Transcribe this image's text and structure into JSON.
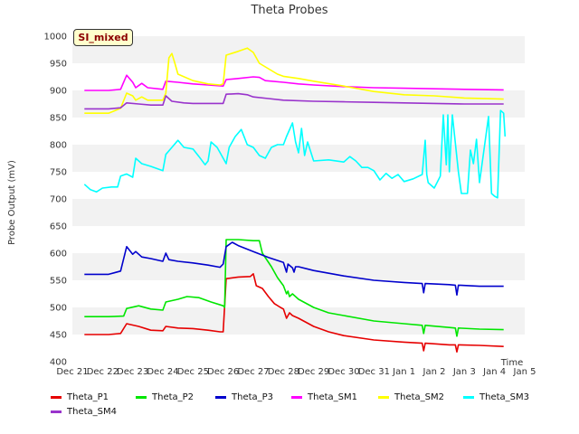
{
  "chart_data": {
    "type": "line",
    "title": "Theta Probes",
    "xlabel": "Time",
    "ylabel": "Probe Output (mV)",
    "badge": "SI_mixed",
    "ylim": [
      400,
      1000
    ],
    "xlim": [
      0,
      15
    ],
    "y_ticks": [
      400,
      450,
      500,
      550,
      600,
      650,
      700,
      750,
      800,
      850,
      900,
      950,
      1000
    ],
    "x_ticks": [
      {
        "x": 0,
        "label": "Dec 21"
      },
      {
        "x": 1,
        "label": "Dec 22"
      },
      {
        "x": 2,
        "label": "Dec 23"
      },
      {
        "x": 3,
        "label": "Dec 24"
      },
      {
        "x": 4,
        "label": "Dec 25"
      },
      {
        "x": 5,
        "label": "Dec 26"
      },
      {
        "x": 6,
        "label": "Dec 27"
      },
      {
        "x": 7,
        "label": "Dec 28"
      },
      {
        "x": 8,
        "label": "Dec 29"
      },
      {
        "x": 9,
        "label": "Dec 30"
      },
      {
        "x": 10,
        "label": "Dec 31"
      },
      {
        "x": 11,
        "label": "Jan 1"
      },
      {
        "x": 12,
        "label": "Jan 2"
      },
      {
        "x": 13,
        "label": "Jan 3"
      },
      {
        "x": 14,
        "label": "Jan 4"
      },
      {
        "x": 15,
        "label": "Jan 5"
      }
    ],
    "grid": true,
    "legend_position": "bottom",
    "series": [
      {
        "name": "Theta_P1",
        "color": "#e60000",
        "points": [
          [
            0.4,
            450
          ],
          [
            1.2,
            450
          ],
          [
            1.6,
            452
          ],
          [
            1.8,
            470
          ],
          [
            2.2,
            465
          ],
          [
            2.6,
            458
          ],
          [
            3.0,
            457
          ],
          [
            3.1,
            465
          ],
          [
            3.5,
            462
          ],
          [
            4.0,
            461
          ],
          [
            4.5,
            458
          ],
          [
            4.9,
            455
          ],
          [
            5.0,
            455
          ],
          [
            5.1,
            553
          ],
          [
            5.5,
            556
          ],
          [
            5.9,
            557
          ],
          [
            6.0,
            562
          ],
          [
            6.1,
            540
          ],
          [
            6.3,
            535
          ],
          [
            6.5,
            520
          ],
          [
            6.7,
            507
          ],
          [
            6.9,
            500
          ],
          [
            7.0,
            497
          ],
          [
            7.1,
            480
          ],
          [
            7.2,
            490
          ],
          [
            7.3,
            485
          ],
          [
            7.5,
            480
          ],
          [
            8.0,
            465
          ],
          [
            8.5,
            455
          ],
          [
            9.0,
            448
          ],
          [
            10.0,
            440
          ],
          [
            11.0,
            436
          ],
          [
            11.6,
            434
          ],
          [
            11.65,
            420
          ],
          [
            11.7,
            434
          ],
          [
            12.5,
            431
          ],
          [
            12.7,
            431
          ],
          [
            12.75,
            418
          ],
          [
            12.8,
            431
          ],
          [
            13.5,
            430
          ],
          [
            14.3,
            428
          ]
        ]
      },
      {
        "name": "Theta_P2",
        "color": "#00e600",
        "points": [
          [
            0.4,
            483
          ],
          [
            1.2,
            483
          ],
          [
            1.7,
            484
          ],
          [
            1.8,
            498
          ],
          [
            2.2,
            503
          ],
          [
            2.6,
            497
          ],
          [
            3.0,
            495
          ],
          [
            3.1,
            510
          ],
          [
            3.5,
            515
          ],
          [
            3.8,
            520
          ],
          [
            4.2,
            518
          ],
          [
            4.6,
            510
          ],
          [
            5.0,
            503
          ],
          [
            5.05,
            500
          ],
          [
            5.1,
            625
          ],
          [
            5.5,
            625
          ],
          [
            6.0,
            623
          ],
          [
            6.2,
            623
          ],
          [
            6.3,
            600
          ],
          [
            6.6,
            575
          ],
          [
            6.8,
            555
          ],
          [
            7.0,
            540
          ],
          [
            7.1,
            525
          ],
          [
            7.15,
            530
          ],
          [
            7.2,
            520
          ],
          [
            7.3,
            525
          ],
          [
            7.5,
            515
          ],
          [
            8.0,
            500
          ],
          [
            8.5,
            490
          ],
          [
            9.0,
            485
          ],
          [
            10.0,
            475
          ],
          [
            11.0,
            470
          ],
          [
            11.6,
            467
          ],
          [
            11.65,
            452
          ],
          [
            11.7,
            467
          ],
          [
            12.5,
            463
          ],
          [
            12.7,
            462
          ],
          [
            12.75,
            447
          ],
          [
            12.8,
            462
          ],
          [
            13.5,
            460
          ],
          [
            14.3,
            459
          ]
        ]
      },
      {
        "name": "Theta_P3",
        "color": "#0000cc",
        "points": [
          [
            0.4,
            561
          ],
          [
            1.2,
            561
          ],
          [
            1.6,
            567
          ],
          [
            1.8,
            612
          ],
          [
            2.0,
            598
          ],
          [
            2.1,
            603
          ],
          [
            2.3,
            593
          ],
          [
            2.6,
            590
          ],
          [
            3.0,
            585
          ],
          [
            3.1,
            600
          ],
          [
            3.2,
            588
          ],
          [
            3.5,
            585
          ],
          [
            4.0,
            582
          ],
          [
            4.5,
            578
          ],
          [
            4.9,
            574
          ],
          [
            5.0,
            580
          ],
          [
            5.1,
            612
          ],
          [
            5.3,
            620
          ],
          [
            5.5,
            614
          ],
          [
            6.0,
            603
          ],
          [
            6.5,
            592
          ],
          [
            7.0,
            583
          ],
          [
            7.1,
            565
          ],
          [
            7.15,
            580
          ],
          [
            7.3,
            573
          ],
          [
            7.35,
            565
          ],
          [
            7.4,
            575
          ],
          [
            7.5,
            575
          ],
          [
            8.0,
            568
          ],
          [
            9.0,
            558
          ],
          [
            10.0,
            550
          ],
          [
            11.0,
            546
          ],
          [
            11.6,
            544
          ],
          [
            11.65,
            527
          ],
          [
            11.7,
            544
          ],
          [
            12.5,
            542
          ],
          [
            12.7,
            541
          ],
          [
            12.75,
            523
          ],
          [
            12.8,
            541
          ],
          [
            13.5,
            539
          ],
          [
            14.3,
            539
          ]
        ]
      },
      {
        "name": "Theta_SM1",
        "color": "#ff00ff",
        "points": [
          [
            0.4,
            900
          ],
          [
            1.2,
            900
          ],
          [
            1.6,
            902
          ],
          [
            1.8,
            928
          ],
          [
            2.0,
            915
          ],
          [
            2.1,
            905
          ],
          [
            2.3,
            913
          ],
          [
            2.5,
            905
          ],
          [
            3.0,
            902
          ],
          [
            3.1,
            917
          ],
          [
            3.5,
            915
          ],
          [
            4.0,
            912
          ],
          [
            4.5,
            910
          ],
          [
            5.0,
            908
          ],
          [
            5.1,
            920
          ],
          [
            5.5,
            922
          ],
          [
            6.0,
            925
          ],
          [
            6.2,
            924
          ],
          [
            6.4,
            918
          ],
          [
            7.0,
            915
          ],
          [
            7.5,
            912
          ],
          [
            8.0,
            910
          ],
          [
            9.0,
            907
          ],
          [
            10.0,
            905
          ],
          [
            11.0,
            904
          ],
          [
            12.0,
            903
          ],
          [
            13.0,
            902
          ],
          [
            14.3,
            901
          ]
        ]
      },
      {
        "name": "Theta_SM2",
        "color": "#ffff00",
        "points": [
          [
            0.4,
            858
          ],
          [
            1.2,
            858
          ],
          [
            1.6,
            867
          ],
          [
            1.8,
            895
          ],
          [
            2.0,
            890
          ],
          [
            2.1,
            882
          ],
          [
            2.3,
            888
          ],
          [
            2.5,
            882
          ],
          [
            3.0,
            882
          ],
          [
            3.1,
            895
          ],
          [
            3.2,
            960
          ],
          [
            3.3,
            968
          ],
          [
            3.4,
            950
          ],
          [
            3.5,
            930
          ],
          [
            4.0,
            918
          ],
          [
            4.5,
            912
          ],
          [
            4.9,
            910
          ],
          [
            5.0,
            912
          ],
          [
            5.1,
            965
          ],
          [
            5.5,
            972
          ],
          [
            5.8,
            978
          ],
          [
            6.0,
            970
          ],
          [
            6.2,
            950
          ],
          [
            6.5,
            940
          ],
          [
            6.8,
            930
          ],
          [
            7.0,
            926
          ],
          [
            7.5,
            922
          ],
          [
            8.0,
            917
          ],
          [
            9.0,
            908
          ],
          [
            10.0,
            898
          ],
          [
            11.0,
            892
          ],
          [
            12.0,
            890
          ],
          [
            13.0,
            886
          ],
          [
            14.3,
            884
          ]
        ]
      },
      {
        "name": "Theta_SM3",
        "color": "#00ffff",
        "points": [
          [
            0.4,
            727
          ],
          [
            0.6,
            717
          ],
          [
            0.8,
            713
          ],
          [
            1.0,
            720
          ],
          [
            1.3,
            722
          ],
          [
            1.5,
            722
          ],
          [
            1.6,
            742
          ],
          [
            1.8,
            746
          ],
          [
            2.0,
            740
          ],
          [
            2.1,
            775
          ],
          [
            2.3,
            765
          ],
          [
            2.6,
            760
          ],
          [
            3.0,
            752
          ],
          [
            3.1,
            782
          ],
          [
            3.3,
            795
          ],
          [
            3.5,
            808
          ],
          [
            3.7,
            795
          ],
          [
            4.0,
            792
          ],
          [
            4.2,
            778
          ],
          [
            4.4,
            763
          ],
          [
            4.5,
            770
          ],
          [
            4.6,
            805
          ],
          [
            4.8,
            795
          ],
          [
            5.0,
            775
          ],
          [
            5.1,
            765
          ],
          [
            5.2,
            795
          ],
          [
            5.4,
            815
          ],
          [
            5.6,
            828
          ],
          [
            5.8,
            800
          ],
          [
            6.0,
            795
          ],
          [
            6.2,
            780
          ],
          [
            6.4,
            775
          ],
          [
            6.6,
            795
          ],
          [
            6.8,
            800
          ],
          [
            7.0,
            800
          ],
          [
            7.1,
            815
          ],
          [
            7.3,
            840
          ],
          [
            7.4,
            805
          ],
          [
            7.5,
            785
          ],
          [
            7.6,
            830
          ],
          [
            7.7,
            780
          ],
          [
            7.8,
            805
          ],
          [
            8.0,
            770
          ],
          [
            8.5,
            772
          ],
          [
            9.0,
            768
          ],
          [
            9.2,
            778
          ],
          [
            9.4,
            770
          ],
          [
            9.6,
            758
          ],
          [
            9.8,
            758
          ],
          [
            10.0,
            752
          ],
          [
            10.2,
            735
          ],
          [
            10.4,
            747
          ],
          [
            10.6,
            738
          ],
          [
            10.8,
            745
          ],
          [
            11.0,
            732
          ],
          [
            11.3,
            737
          ],
          [
            11.6,
            745
          ],
          [
            11.7,
            808
          ],
          [
            11.75,
            745
          ],
          [
            11.8,
            730
          ],
          [
            12.0,
            720
          ],
          [
            12.2,
            742
          ],
          [
            12.3,
            855
          ],
          [
            12.4,
            763
          ],
          [
            12.45,
            855
          ],
          [
            12.5,
            750
          ],
          [
            12.6,
            855
          ],
          [
            12.8,
            750
          ],
          [
            12.9,
            710
          ],
          [
            13.1,
            710
          ],
          [
            13.2,
            790
          ],
          [
            13.3,
            765
          ],
          [
            13.4,
            810
          ],
          [
            13.5,
            730
          ],
          [
            13.8,
            852
          ],
          [
            13.9,
            710
          ],
          [
            14.0,
            705
          ],
          [
            14.1,
            702
          ],
          [
            14.2,
            863
          ],
          [
            14.3,
            858
          ],
          [
            14.35,
            815
          ]
        ]
      },
      {
        "name": "Theta_SM4",
        "color": "#9933cc",
        "points": [
          [
            0.4,
            866
          ],
          [
            1.2,
            866
          ],
          [
            1.6,
            868
          ],
          [
            1.8,
            877
          ],
          [
            2.2,
            875
          ],
          [
            2.6,
            873
          ],
          [
            3.0,
            873
          ],
          [
            3.1,
            890
          ],
          [
            3.3,
            880
          ],
          [
            3.7,
            877
          ],
          [
            4.0,
            876
          ],
          [
            4.5,
            876
          ],
          [
            5.0,
            876
          ],
          [
            5.1,
            893
          ],
          [
            5.5,
            894
          ],
          [
            5.8,
            892
          ],
          [
            6.0,
            888
          ],
          [
            6.5,
            885
          ],
          [
            7.0,
            882
          ],
          [
            8.0,
            880
          ],
          [
            9.0,
            879
          ],
          [
            10.0,
            878
          ],
          [
            11.0,
            877
          ],
          [
            12.0,
            876
          ],
          [
            13.0,
            875
          ],
          [
            14.3,
            875
          ]
        ]
      }
    ]
  }
}
